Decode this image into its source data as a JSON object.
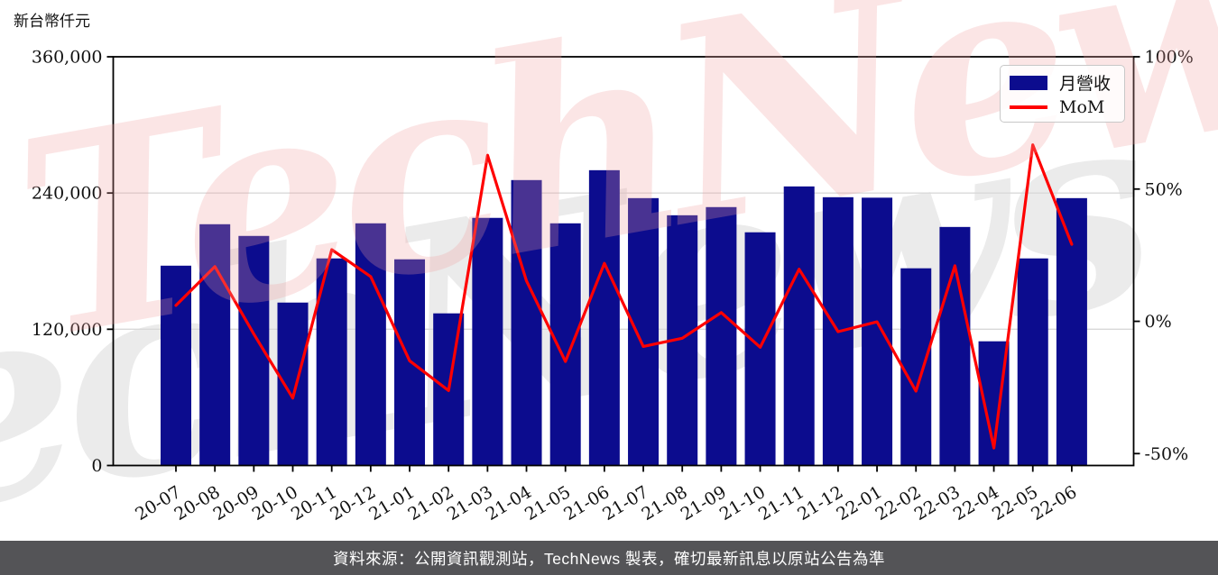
{
  "watermark": {
    "text": "TechNews"
  },
  "legend": {
    "items": [
      {
        "label": "月營收",
        "marker": "bar"
      },
      {
        "label": "MoM",
        "marker": "line"
      }
    ]
  },
  "footer": {
    "text": "資料來源：公開資訊觀測站，TechNews 製表，確切最新訊息以原站公告為準"
  },
  "colors": {
    "bar": "#0c0c8e",
    "line": "#ff0000",
    "grid": "#d9d9d9",
    "axis": "#000000",
    "tick_text": "#111111",
    "footer_bg": "#545457",
    "footer_text": "#ffffff",
    "watermark_pink": "rgba(242,158,158,0.27)",
    "watermark_gray": "#ebebeb"
  },
  "chart_data": {
    "type": "bar",
    "combo": "bar+line dual axis",
    "title": "",
    "ylabel": "新台幣仟元",
    "categories": [
      "20-07",
      "20-08",
      "20-09",
      "20-10",
      "20-11",
      "20-12",
      "21-01",
      "21-02",
      "21-03",
      "21-04",
      "21-05",
      "21-06",
      "21-07",
      "21-08",
      "21-09",
      "21-10",
      "21-11",
      "21-12",
      "22-01",
      "22-02",
      "22-03",
      "22-04",
      "22-05",
      "22-06"
    ],
    "series": [
      {
        "name": "月營收",
        "type": "bar",
        "axis": "left",
        "unit": "新台幣仟元",
        "values": [
          176000,
          212500,
          202200,
          143500,
          182400,
          213300,
          181600,
          134000,
          218100,
          251400,
          213300,
          260100,
          235500,
          220400,
          227600,
          205400,
          245800,
          236300,
          235900,
          173700,
          210100,
          109400,
          182400,
          235500
        ]
      },
      {
        "name": "MoM",
        "type": "line",
        "axis": "right",
        "unit": "%",
        "values": [
          6.0,
          20.7,
          -4.8,
          -29.0,
          27.1,
          16.9,
          -14.9,
          -26.2,
          62.8,
          15.3,
          -15.2,
          21.9,
          -9.5,
          -6.4,
          3.3,
          -9.8,
          19.7,
          -3.9,
          -0.2,
          -26.4,
          21.0,
          -47.9,
          66.7,
          29.1
        ]
      }
    ],
    "left_axis": {
      "unit": "新台幣仟元",
      "range": [
        0,
        360000
      ],
      "ticks": [
        0,
        120000,
        240000,
        360000
      ],
      "tick_labels": [
        "0",
        "120,000",
        "240,000",
        "360,000"
      ],
      "grid_values": [
        120000,
        240000
      ]
    },
    "right_axis": {
      "range": [
        -54.5,
        100
      ],
      "ticks": [
        -50,
        0,
        50,
        100
      ],
      "tick_labels": [
        "-50%",
        "0%",
        "50%",
        "100%"
      ]
    },
    "legend_position": "upper right",
    "grid": "horizontal"
  }
}
